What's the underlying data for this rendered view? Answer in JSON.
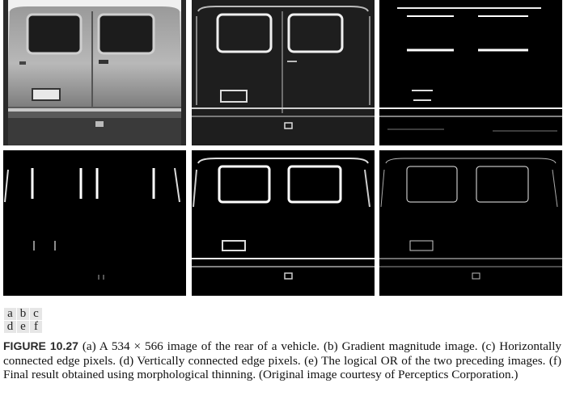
{
  "figure": {
    "panels": [
      {
        "id": "a",
        "description_icon": "van-rear-photo-icon"
      },
      {
        "id": "b",
        "description_icon": "gradient-edge-icon"
      },
      {
        "id": "c",
        "description_icon": "horizontal-edges-icon"
      },
      {
        "id": "d",
        "description_icon": "vertical-edges-icon"
      },
      {
        "id": "e",
        "description_icon": "combined-edges-icon"
      },
      {
        "id": "f",
        "description_icon": "thinned-edges-icon"
      }
    ],
    "legend": {
      "row1": [
        "a",
        "b",
        "c"
      ],
      "row2": [
        "d",
        "e",
        "f"
      ]
    },
    "caption": {
      "label": "FIGURE 10.27",
      "text": "(a) A 534 × 566 image of the rear of a vehicle. (b) Gradient magnitude image. (c) Horizontally connected edge pixels. (d) Vertically connected edge pixels. (e) The logical OR of the two preceding images. (f) Final result obtained using morphological thinning. (Original image courtesy of Perceptics Corporation.)"
    }
  }
}
